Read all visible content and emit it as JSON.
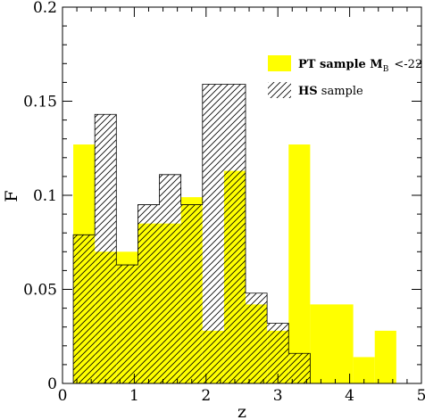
{
  "chart_data": {
    "type": "histogram",
    "title": "",
    "xlabel": "z",
    "ylabel": "F",
    "xlim": [
      0,
      5
    ],
    "ylim": [
      0,
      0.2
    ],
    "xticks": [
      "0",
      "1",
      "2",
      "3",
      "4",
      "5"
    ],
    "yticks": [
      "0",
      "0.05",
      "0.1",
      "0.15",
      "0.2"
    ],
    "legend_position": "top-right",
    "colors": {
      "pt_fill": "#ffff00",
      "hs_hatch": "#000000"
    },
    "series": [
      {
        "name": "PT sample M_B<-22",
        "legend": {
          "bold": "PT sample M",
          "sub": "B",
          "rest": "<-22"
        },
        "style": "filled-yellow",
        "bins": [
          {
            "x0": 0.15,
            "x1": 0.45,
            "value": 0.127
          },
          {
            "x0": 0.45,
            "x1": 0.75,
            "value": 0.07
          },
          {
            "x0": 0.75,
            "x1": 1.05,
            "value": 0.07
          },
          {
            "x0": 1.05,
            "x1": 1.35,
            "value": 0.085
          },
          {
            "x0": 1.35,
            "x1": 1.65,
            "value": 0.085
          },
          {
            "x0": 1.65,
            "x1": 1.95,
            "value": 0.099
          },
          {
            "x0": 1.95,
            "x1": 2.25,
            "value": 0.028
          },
          {
            "x0": 2.25,
            "x1": 2.55,
            "value": 0.113
          },
          {
            "x0": 2.55,
            "x1": 2.85,
            "value": 0.042
          },
          {
            "x0": 2.85,
            "x1": 3.15,
            "value": 0.028
          },
          {
            "x0": 3.15,
            "x1": 3.45,
            "value": 0.127
          },
          {
            "x0": 3.45,
            "x1": 3.75,
            "value": 0.042
          },
          {
            "x0": 3.75,
            "x1": 4.05,
            "value": 0.042
          },
          {
            "x0": 4.05,
            "x1": 4.35,
            "value": 0.014
          },
          {
            "x0": 4.35,
            "x1": 4.65,
            "value": 0.028
          }
        ]
      },
      {
        "name": "HS sample",
        "legend": {
          "bold": "HS",
          "sub": "",
          "rest": " sample"
        },
        "style": "hatched",
        "bins": [
          {
            "x0": 0.15,
            "x1": 0.45,
            "value": 0.079
          },
          {
            "x0": 0.45,
            "x1": 0.75,
            "value": 0.143
          },
          {
            "x0": 0.75,
            "x1": 1.05,
            "value": 0.063
          },
          {
            "x0": 1.05,
            "x1": 1.35,
            "value": 0.095
          },
          {
            "x0": 1.35,
            "x1": 1.65,
            "value": 0.111
          },
          {
            "x0": 1.65,
            "x1": 1.95,
            "value": 0.095
          },
          {
            "x0": 1.95,
            "x1": 2.55,
            "value": 0.159
          },
          {
            "x0": 2.55,
            "x1": 2.85,
            "value": 0.048
          },
          {
            "x0": 2.85,
            "x1": 3.15,
            "value": 0.032
          },
          {
            "x0": 3.15,
            "x1": 3.45,
            "value": 0.016
          }
        ]
      }
    ]
  }
}
